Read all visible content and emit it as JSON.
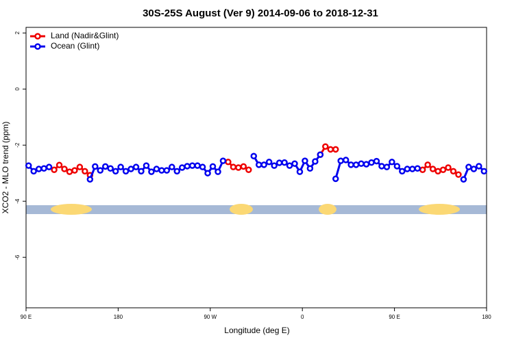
{
  "chart_data": {
    "type": "line",
    "title": "30S-25S August (Ver 9)   2014-09-06 to 2018-12-31",
    "x_label": "Longitude (deg E)",
    "y_label": "XCO2 - MLO trend (ppm)",
    "x": [
      92.5,
      97.5,
      102.5,
      107.5,
      112.5,
      117.5,
      122.5,
      127.5,
      132.5,
      137.5,
      142.5,
      147.5,
      152.5,
      157.5,
      162.5,
      167.5,
      172.5,
      177.5,
      182.5,
      187.5,
      192.5,
      197.5,
      202.5,
      207.5,
      212.5,
      217.5,
      222.5,
      227.5,
      232.5,
      237.5,
      242.5,
      247.5,
      252.5,
      257.5,
      262.5,
      267.5,
      272.5,
      277.5,
      282.5,
      287.5,
      292.5,
      297.5,
      302.5,
      307.5,
      312.5,
      317.5,
      322.5,
      327.5,
      332.5,
      337.5,
      342.5,
      347.5,
      352.5,
      357.5,
      362.5,
      367.5,
      372.5,
      377.5,
      382.5,
      387.5,
      392.5,
      397.5,
      402.5,
      407.5,
      412.5,
      417.5,
      422.5,
      427.5,
      432.5,
      437.5,
      442.5,
      447.5,
      452.5,
      457.5,
      462.5,
      467.5,
      472.5,
      477.5,
      482.5,
      487.5,
      492.5,
      497.5,
      502.5,
      507.5,
      512.5,
      517.5,
      522.5,
      527.5,
      532.5,
      537.5
    ],
    "series": [
      {
        "name": "Land (Nadir&Glint)",
        "color": "#ee0000",
        "values": [
          null,
          null,
          null,
          null,
          null,
          -2.88,
          -2.71,
          -2.85,
          -2.95,
          -2.9,
          -2.78,
          -2.93,
          -3.07,
          null,
          null,
          null,
          null,
          null,
          null,
          null,
          null,
          null,
          null,
          null,
          null,
          null,
          null,
          null,
          null,
          null,
          null,
          null,
          null,
          null,
          null,
          null,
          null,
          null,
          null,
          -2.6,
          -2.78,
          -2.8,
          -2.76,
          -2.88,
          null,
          null,
          null,
          null,
          null,
          null,
          null,
          null,
          null,
          null,
          null,
          null,
          null,
          -2.34,
          -2.05,
          -2.15,
          -2.15,
          null,
          null,
          null,
          null,
          null,
          null,
          null,
          null,
          null,
          null,
          null,
          null,
          null,
          null,
          null,
          null,
          -2.88,
          -2.7,
          -2.85,
          -2.93,
          -2.88,
          -2.8,
          -2.93,
          -3.05,
          null,
          null,
          null,
          null,
          null
        ]
      },
      {
        "name": "Ocean (Glint)",
        "color": "#0000ee",
        "values": [
          -2.73,
          -2.93,
          -2.85,
          -2.83,
          -2.78,
          null,
          null,
          null,
          null,
          null,
          null,
          null,
          -3.22,
          -2.76,
          -2.9,
          -2.76,
          -2.83,
          -2.93,
          -2.78,
          -2.93,
          -2.85,
          -2.78,
          -2.93,
          -2.73,
          -2.95,
          -2.85,
          -2.9,
          -2.9,
          -2.78,
          -2.93,
          -2.8,
          -2.75,
          -2.73,
          -2.73,
          -2.78,
          -3.0,
          -2.76,
          -2.95,
          -2.56,
          null,
          null,
          null,
          null,
          null,
          -2.39,
          -2.7,
          -2.7,
          -2.6,
          -2.73,
          -2.63,
          -2.62,
          -2.73,
          -2.66,
          -2.95,
          -2.56,
          -2.83,
          -2.58,
          -2.34,
          null,
          null,
          -3.2,
          -2.56,
          -2.53,
          -2.7,
          -2.7,
          -2.66,
          -2.68,
          -2.62,
          -2.57,
          -2.75,
          -2.78,
          -2.6,
          -2.75,
          -2.93,
          -2.85,
          -2.85,
          -2.83,
          null,
          null,
          null,
          null,
          null,
          null,
          null,
          null,
          -3.22,
          -2.78,
          -2.85,
          -2.75,
          -2.93
        ]
      }
    ],
    "xlim": [
      90,
      540
    ],
    "xticks": [
      {
        "value": 90,
        "label": "90 E"
      },
      180,
      {
        "value": 270,
        "label": "90 W"
      },
      {
        "value": 360,
        "label": "0"
      },
      {
        "value": 450,
        "label": "90 E"
      },
      {
        "value": 540,
        "label": "180"
      }
    ],
    "ylim": [
      -7.8,
      2.2
    ],
    "yticks": [
      -6,
      -4,
      -2,
      0,
      2
    ],
    "legend": "top-left"
  }
}
